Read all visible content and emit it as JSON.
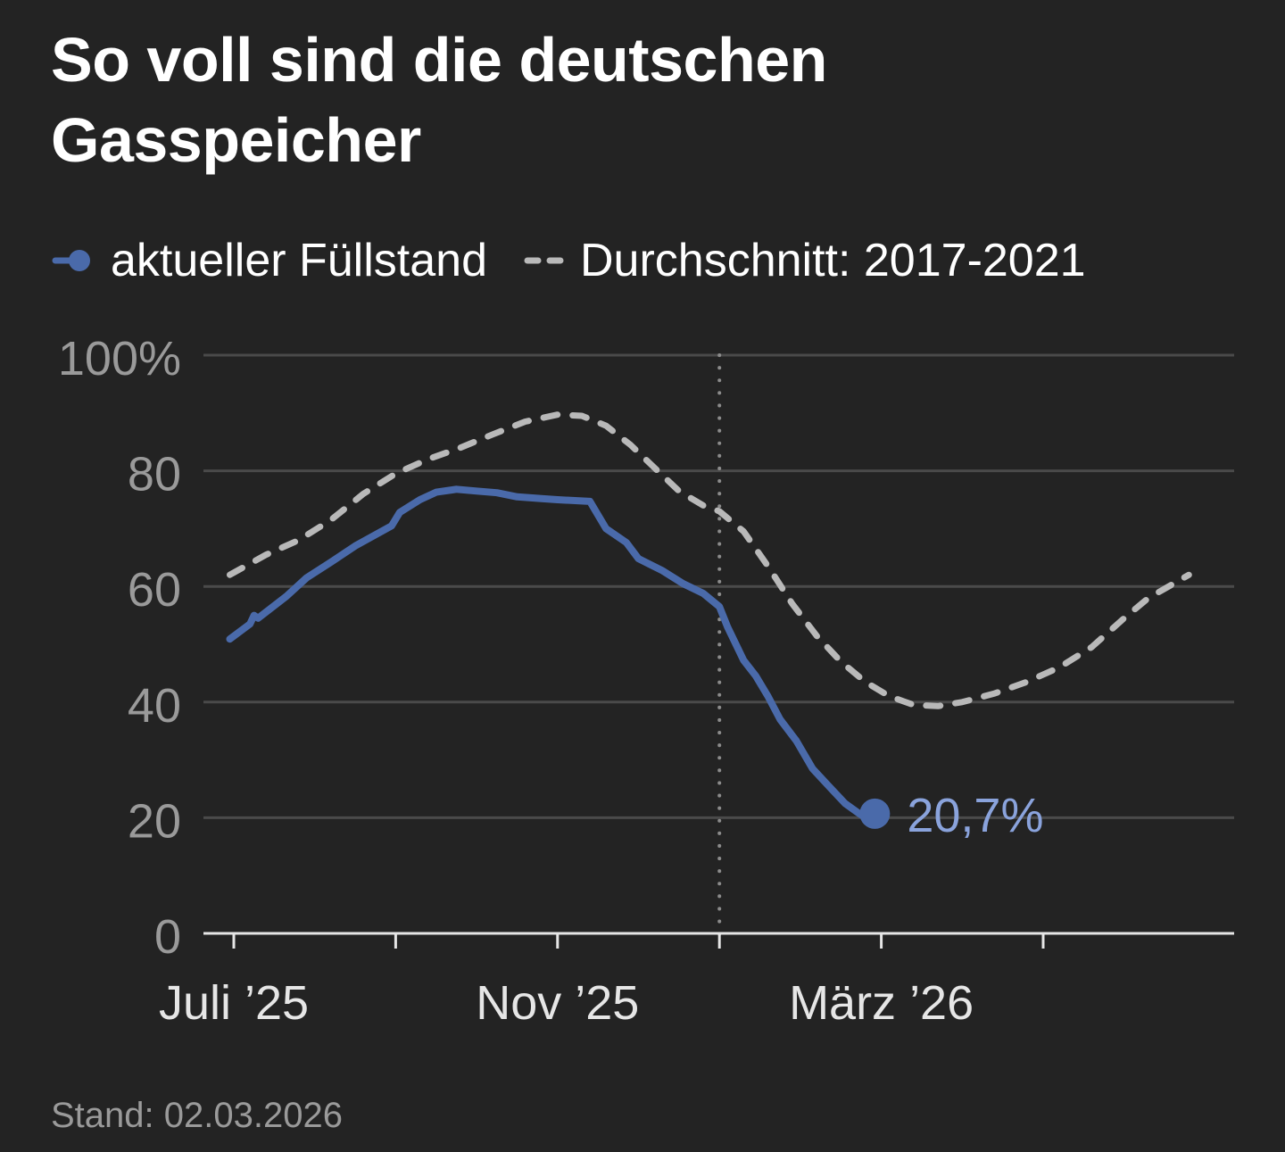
{
  "title": "So voll sind die deutschen Gasspeicher",
  "legend": [
    {
      "label": "aktueller Füllstand",
      "style": "solid-dot",
      "color": "#4a6aaa"
    },
    {
      "label": "Durchschnitt: 2017-2021",
      "style": "dashed",
      "color": "#b9b9b9"
    }
  ],
  "footer": "Stand: 02.03.2026",
  "colors": {
    "background": "#232323",
    "current": "#4a6aaa",
    "current_label": "#8aa3dc",
    "average": "#b9b9b9",
    "grid": "#4a4a4a",
    "tick_label": "#9a9a9a",
    "axis": "#e6e6e6"
  },
  "chart_data": {
    "type": "line",
    "title": "So voll sind die deutschen Gasspeicher",
    "xlabel": "",
    "ylabel": "",
    "x_unit": "months since 1 July 2025",
    "xlim": [
      -0.4,
      12.1
    ],
    "ylim": [
      0,
      100
    ],
    "grid": true,
    "legend_position": "top-left",
    "y_ticks": [
      {
        "value": 0,
        "label": "0"
      },
      {
        "value": 20,
        "label": "20"
      },
      {
        "value": 40,
        "label": "40"
      },
      {
        "value": 60,
        "label": "60"
      },
      {
        "value": 80,
        "label": "80"
      },
      {
        "value": 100,
        "label": "100%"
      }
    ],
    "x_ticks": [
      {
        "value": 0,
        "label": "Juli ’25"
      },
      {
        "value": 2,
        "label": ""
      },
      {
        "value": 4,
        "label": "Nov ’25"
      },
      {
        "value": 6,
        "label": ""
      },
      {
        "value": 8,
        "label": "März ’26"
      },
      {
        "value": 10,
        "label": ""
      }
    ],
    "reference_line": {
      "x": 6,
      "style": "dotted",
      "label": ""
    },
    "series": [
      {
        "name": "aktueller Füllstand",
        "style": "solid",
        "x": [
          -0.05,
          0.2,
          0.25,
          0.3,
          0.65,
          0.9,
          1.2,
          1.5,
          1.95,
          2.05,
          2.3,
          2.5,
          2.75,
          3.0,
          3.25,
          3.5,
          3.8,
          4.0,
          4.4,
          4.6,
          4.85,
          5.0,
          5.3,
          5.55,
          5.8,
          6.0,
          6.1,
          6.3,
          6.45,
          6.6,
          6.75,
          6.95,
          7.15,
          7.35,
          7.55,
          7.75,
          7.92
        ],
        "values": [
          50.9,
          53.5,
          55.0,
          54.5,
          58.3,
          61.5,
          64.2,
          67.0,
          70.5,
          72.8,
          75.0,
          76.3,
          76.8,
          76.5,
          76.2,
          75.5,
          75.2,
          75.0,
          74.7,
          70.0,
          67.6,
          64.8,
          62.7,
          60.5,
          58.8,
          56.5,
          53.0,
          47.2,
          44.5,
          41.0,
          37.0,
          33.3,
          28.5,
          25.5,
          22.5,
          20.5,
          20.7
        ]
      },
      {
        "name": "Durchschnitt: 2017-2021",
        "style": "dashed",
        "x": [
          -0.05,
          0.4,
          0.8,
          1.2,
          1.6,
          2.0,
          2.4,
          2.8,
          3.2,
          3.6,
          4.0,
          4.3,
          4.6,
          4.9,
          5.2,
          5.5,
          5.8,
          6.0,
          6.3,
          6.6,
          6.9,
          7.2,
          7.5,
          7.8,
          8.1,
          8.4,
          8.7,
          9.0,
          9.4,
          9.8,
          10.2,
          10.6,
          11.0,
          11.3,
          11.8
        ],
        "values": [
          62.0,
          65.5,
          68.0,
          71.5,
          76.0,
          79.5,
          82.0,
          84.0,
          86.3,
          88.5,
          89.7,
          89.5,
          87.8,
          84.5,
          80.5,
          76.5,
          74.0,
          73.0,
          69.5,
          63.5,
          57.0,
          51.5,
          47.0,
          43.5,
          41.0,
          39.5,
          39.3,
          40.0,
          41.5,
          43.5,
          46.0,
          49.5,
          54.5,
          58.0,
          62.0
        ]
      }
    ],
    "annotations": [
      {
        "text": "20,7%",
        "x": 7.92,
        "y": 20.7,
        "series": "aktueller Füllstand"
      }
    ]
  }
}
